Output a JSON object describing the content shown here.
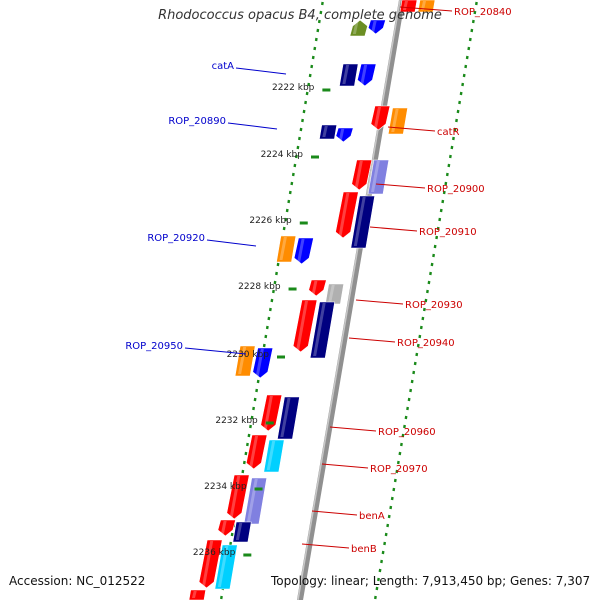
{
  "title": "Rhodococcus opacus B4, complete genome",
  "accession": "Accession: NC_012522",
  "topology": "Topology: linear; Length: 7,913,450 bp; Genes: 7,307",
  "colors": {
    "backbone": "#808080",
    "tick": "#1a8a1a",
    "left_label": "#0000cc",
    "right_label": "#cc0000",
    "navy": "#000080",
    "blue": "#0000ff",
    "red": "#ff0000",
    "orange": "#ff8c00",
    "olive": "#6b8e23",
    "lavender": "#8080e0",
    "grey": "#b0b0b0",
    "cyan": "#00d0ff"
  },
  "ruler": [
    {
      "label": "2222 kbp"
    },
    {
      "label": "2224 kbp"
    },
    {
      "label": "2226 kbp"
    },
    {
      "label": "2228 kbp"
    },
    {
      "label": "2230 kbp"
    },
    {
      "label": "2232 kbp"
    },
    {
      "label": "2234 kbp"
    },
    {
      "label": "2236 kbp"
    }
  ],
  "left_labels": [
    {
      "name": "catA"
    },
    {
      "name": "ROP_20890"
    },
    {
      "name": "ROP_20920"
    },
    {
      "name": "ROP_20950"
    }
  ],
  "right_labels": [
    {
      "name": "ROP_20840"
    },
    {
      "name": "catR"
    },
    {
      "name": "ROP_20900"
    },
    {
      "name": "ROP_20910"
    },
    {
      "name": "ROP_20930"
    },
    {
      "name": "ROP_20940"
    },
    {
      "name": "ROP_20960"
    },
    {
      "name": "ROP_20970"
    },
    {
      "name": "benA"
    },
    {
      "name": "benB"
    }
  ]
}
